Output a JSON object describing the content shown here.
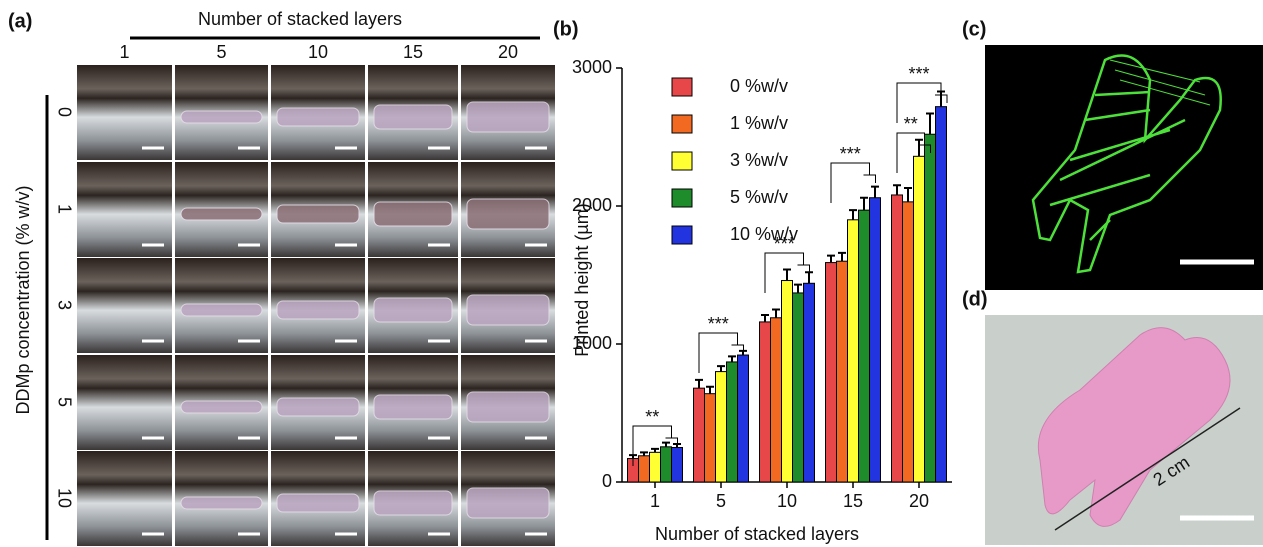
{
  "panel_a": {
    "label": "(a)",
    "title": "Number of stacked layers",
    "columns": [
      "1",
      "5",
      "10",
      "15",
      "20"
    ],
    "row_title": "DDMp concentration (% w/v)",
    "rows": [
      "0",
      "1",
      "3",
      "5",
      "10"
    ]
  },
  "chart_data": {
    "type": "bar",
    "label": "(b)",
    "x_label": "Number of stacked layers",
    "y_label": "Printed height (µm)",
    "categories": [
      "1",
      "5",
      "10",
      "15",
      "20"
    ],
    "series": [
      {
        "name": "0 %w/v",
        "color": "#e8474a",
        "values": [
          170,
          680,
          1160,
          1590,
          2080
        ],
        "errors": [
          25,
          60,
          50,
          50,
          70
        ]
      },
      {
        "name": "1 %w/v",
        "color": "#f26a21",
        "values": [
          190,
          640,
          1190,
          1600,
          2030
        ],
        "errors": [
          25,
          50,
          60,
          60,
          100
        ]
      },
      {
        "name": "3 %w/v",
        "color": "#ffff33",
        "values": [
          215,
          800,
          1460,
          1900,
          2360
        ],
        "errors": [
          25,
          40,
          80,
          70,
          120
        ]
      },
      {
        "name": "5 %w/v",
        "color": "#1e8c2a",
        "values": [
          255,
          870,
          1370,
          1970,
          2520
        ],
        "errors": [
          30,
          40,
          60,
          90,
          150
        ]
      },
      {
        "name": "10 %w/v",
        "color": "#2233e0",
        "values": [
          250,
          920,
          1440,
          2060,
          2720
        ],
        "errors": [
          25,
          30,
          80,
          80,
          110
        ]
      }
    ],
    "ylim": [
      0,
      3000
    ],
    "yticks": [
      0,
      1000,
      2000,
      3000
    ],
    "annotations": [
      "**",
      "***",
      "***",
      "***",
      "**",
      "***"
    ]
  },
  "panel_c": {
    "label": "(c)"
  },
  "panel_d": {
    "label": "(d)",
    "measurement": "2 cm"
  }
}
